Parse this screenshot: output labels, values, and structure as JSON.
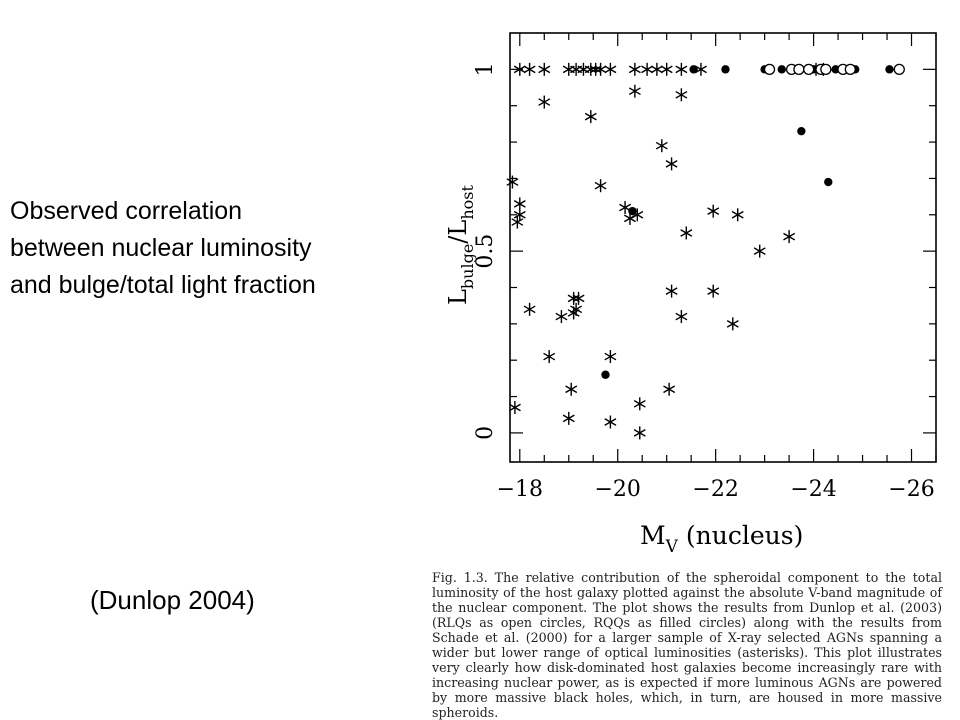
{
  "slide": {
    "lines": [
      "Observed correlation",
      "between nuclear luminosity",
      "and bulge/total light fraction"
    ],
    "citation": "(Dunlop 2004)"
  },
  "caption": "Fig. 1.3. The relative contribution of the spheroidal component to the total luminosity of the host galaxy plotted against the absolute V-band magnitude of the nuclear component. The plot shows the results from Dunlop et al. (2003) (RLQs as open circles, RQQs as filled circles) along with the results from Schade et al. (2000) for a larger sample of X-ray selected AGNs spanning a wider but lower range of optical luminosities (asterisks). This plot illustrates very clearly how disk-dominated host galaxies become increasingly rare with increasing nuclear power, as is expected if more luminous AGNs are powered by more massive black holes, which, in turn, are housed in more massive spheroids.",
  "chart_data": {
    "type": "scatter",
    "xlabel": "M_V (nucleus)",
    "ylabel": "L_bulge/L_host",
    "xlim": [
      -17.8,
      -26.5
    ],
    "ylim": [
      -0.08,
      1.1
    ],
    "xticks": [
      -18,
      -20,
      -22,
      -24,
      -26
    ],
    "xtick_labels": [
      "−18",
      "−20",
      "−22",
      "−24",
      "−26"
    ],
    "yticks": [
      0,
      0.5,
      1
    ],
    "ytick_labels": [
      "0",
      "0.5",
      "1"
    ],
    "grid": false,
    "series": [
      {
        "marker": "asterisk",
        "points": [
          [
            -18.0,
            1.0
          ],
          [
            -18.2,
            1.0
          ],
          [
            -18.5,
            1.0
          ],
          [
            -19.0,
            1.0
          ],
          [
            -19.15,
            1.0
          ],
          [
            -19.3,
            1.0
          ],
          [
            -19.45,
            1.0
          ],
          [
            -19.55,
            1.0
          ],
          [
            -19.65,
            1.0
          ],
          [
            -19.85,
            1.0
          ],
          [
            -20.35,
            1.0
          ],
          [
            -20.6,
            1.0
          ],
          [
            -20.8,
            1.0
          ],
          [
            -21.0,
            1.0
          ],
          [
            -21.3,
            1.0
          ],
          [
            -21.7,
            1.0
          ],
          [
            -24.05,
            1.0
          ],
          [
            -24.2,
            1.0
          ],
          [
            -20.35,
            0.94
          ],
          [
            -21.3,
            0.93
          ],
          [
            -18.5,
            0.91
          ],
          [
            -19.45,
            0.87
          ],
          [
            -20.9,
            0.79
          ],
          [
            -21.1,
            0.74
          ],
          [
            -17.85,
            0.69
          ],
          [
            -19.65,
            0.68
          ],
          [
            -18.0,
            0.63
          ],
          [
            -20.15,
            0.62
          ],
          [
            -21.95,
            0.61
          ],
          [
            -20.25,
            0.59
          ],
          [
            -20.4,
            0.6
          ],
          [
            -22.45,
            0.6
          ],
          [
            -18.0,
            0.6
          ],
          [
            -17.95,
            0.58
          ],
          [
            -21.4,
            0.55
          ],
          [
            -23.5,
            0.54
          ],
          [
            -22.9,
            0.5
          ],
          [
            -19.2,
            0.37
          ],
          [
            -19.1,
            0.37
          ],
          [
            -19.15,
            0.34
          ],
          [
            -21.1,
            0.39
          ],
          [
            -21.95,
            0.39
          ],
          [
            -18.2,
            0.34
          ],
          [
            -18.85,
            0.32
          ],
          [
            -19.1,
            0.33
          ],
          [
            -21.3,
            0.32
          ],
          [
            -22.35,
            0.3
          ],
          [
            -18.6,
            0.21
          ],
          [
            -19.85,
            0.21
          ],
          [
            -19.05,
            0.12
          ],
          [
            -21.05,
            0.12
          ],
          [
            -17.9,
            0.07
          ],
          [
            -20.45,
            0.08
          ],
          [
            -19.0,
            0.04
          ],
          [
            -19.85,
            0.03
          ],
          [
            -20.45,
            0.0
          ]
        ]
      },
      {
        "name": "RQQs",
        "marker": "filled-circle",
        "points": [
          [
            -21.55,
            1.0
          ],
          [
            -22.2,
            1.0
          ],
          [
            -23.0,
            1.0
          ],
          [
            -23.35,
            1.0
          ],
          [
            -24.0,
            1.0
          ],
          [
            -24.45,
            1.0
          ],
          [
            -24.85,
            1.0
          ],
          [
            -25.55,
            1.0
          ],
          [
            -23.75,
            0.83
          ],
          [
            -24.3,
            0.69
          ],
          [
            -20.3,
            0.61
          ],
          [
            -19.75,
            0.16
          ]
        ]
      },
      {
        "name": "RLQs",
        "marker": "open-circle",
        "points": [
          [
            -23.1,
            1.0
          ],
          [
            -23.55,
            1.0
          ],
          [
            -23.7,
            1.0
          ],
          [
            -23.9,
            1.0
          ],
          [
            -24.15,
            1.0
          ],
          [
            -24.25,
            1.0
          ],
          [
            -24.6,
            1.0
          ],
          [
            -24.75,
            1.0
          ],
          [
            -25.75,
            1.0
          ]
        ]
      }
    ]
  }
}
